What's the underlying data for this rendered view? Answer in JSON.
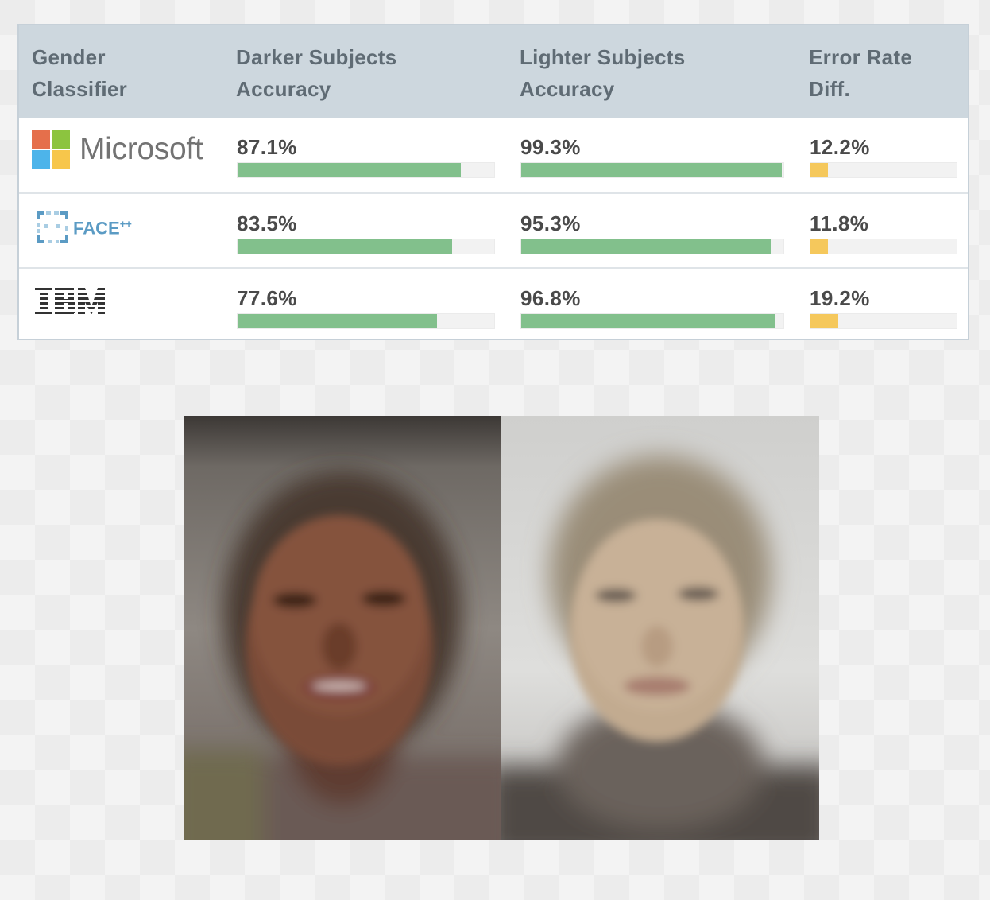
{
  "table": {
    "headers": [
      {
        "line1": "Gender",
        "line2": "Classifier"
      },
      {
        "line1": "Darker Subjects",
        "line2": "Accuracy"
      },
      {
        "line1": "Lighter Subjects",
        "line2": "Accuracy"
      },
      {
        "line1": "Error Rate",
        "line2": "Diff."
      }
    ],
    "rows": [
      {
        "name": "Microsoft",
        "logo_label": "Microsoft",
        "darker": "87.1%",
        "lighter": "99.3%",
        "diff": "12.2%"
      },
      {
        "name": "FACE++",
        "logo_label": "FACE",
        "logo_sup": "++",
        "darker": "83.5%",
        "lighter": "95.3%",
        "diff": "11.8%"
      },
      {
        "name": "IBM",
        "darker": "77.6%",
        "lighter": "96.8%",
        "diff": "19.2%"
      }
    ]
  },
  "chart_data": {
    "type": "table",
    "columns": [
      "Gender Classifier",
      "Darker Subjects Accuracy",
      "Lighter Subjects Accuracy",
      "Error Rate Diff."
    ],
    "categories": [
      "Microsoft",
      "FACE++",
      "IBM"
    ],
    "series": [
      {
        "name": "Darker Subjects Accuracy",
        "values": [
          87.1,
          83.5,
          77.6
        ],
        "color": "#82c08c"
      },
      {
        "name": "Lighter Subjects Accuracy",
        "values": [
          99.3,
          95.3,
          96.8
        ],
        "color": "#82c08c"
      },
      {
        "name": "Error Rate Diff.",
        "values": [
          12.2,
          11.8,
          19.2
        ],
        "color": "#f5c85c"
      }
    ],
    "bar_max": {
      "accuracy": 100,
      "error_rate_diff": 100
    }
  },
  "colors": {
    "header_bg": "#cdd7de",
    "header_text": "#5f6b74",
    "accuracy_bar": "#82c08c",
    "diff_bar": "#f5c85c",
    "track": "#f2f2f2",
    "microsoft": [
      "#f25022",
      "#7fba00",
      "#00a4ef",
      "#ffb900"
    ],
    "facepp": "#5b9bc4",
    "ibm": "#333333"
  },
  "images": [
    {
      "name": "darker-average-face",
      "icon": "blurred-face-photo"
    },
    {
      "name": "lighter-average-face",
      "icon": "blurred-face-photo"
    }
  ]
}
